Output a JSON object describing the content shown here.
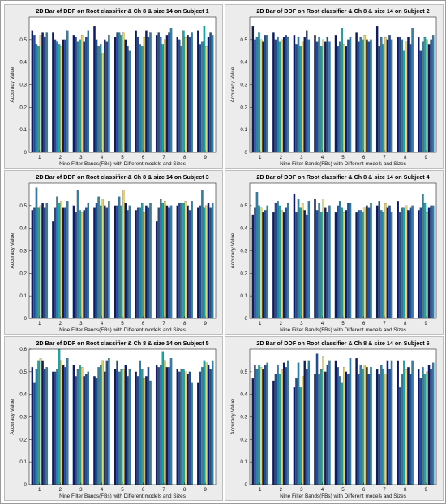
{
  "figure": {
    "palette": [
      "#0b1a6e",
      "#1f4e96",
      "#2f7fa8",
      "#1aa7a2",
      "#e9d46c"
    ]
  },
  "chart_data": [
    {
      "type": "bar",
      "title": "2D Bar of DDF on Root classifier & Ch 8 & size 14 on Subject 1",
      "xlabel": "Nine Filter Bands(FBs) with Different models and Sizes",
      "ylabel": "Accuracy Value",
      "categories": [
        "1",
        "2",
        "3",
        "4",
        "5",
        "6",
        "7",
        "8",
        "9"
      ],
      "ylim": [
        0,
        0.6
      ],
      "yticks": [
        "0",
        "0.1",
        "0.2",
        "0.3",
        "0.4",
        "0.5"
      ],
      "grid": false,
      "series_values": [
        [
          0.54,
          0.52,
          0.48,
          0.47,
          0.52,
          0.53,
          0.51,
          0.53
        ],
        [
          0.53,
          0.5,
          0.49,
          0.48,
          0.47,
          0.5,
          0.5,
          0.54
        ],
        [
          0.52,
          0.51,
          0.49,
          0.5,
          0.52,
          0.49,
          0.51,
          0.54
        ],
        [
          0.56,
          0.5,
          0.47,
          0.48,
          0.44,
          0.5,
          0.49,
          0.52
        ],
        [
          0.51,
          0.53,
          0.53,
          0.52,
          0.53,
          0.5,
          0.47,
          0.45
        ],
        [
          0.54,
          0.51,
          0.48,
          0.47,
          0.51,
          0.54,
          0.51,
          0.53
        ],
        [
          0.52,
          0.53,
          0.51,
          0.48,
          0.5,
          0.52,
          0.53,
          0.55
        ],
        [
          0.51,
          0.5,
          0.47,
          0.54,
          0.51,
          0.52,
          0.51,
          0.53
        ],
        [
          0.54,
          0.48,
          0.49,
          0.56,
          0.47,
          0.51,
          0.53,
          0.52
        ]
      ]
    },
    {
      "type": "bar",
      "title": "2D Bar of DDF on Root classifier & Ch 8 & size 14 on Subject 2",
      "xlabel": "Nine Filter Bands(FBs) with Different models and Sizes",
      "ylabel": "Accuracy Value",
      "categories": [
        "1",
        "2",
        "3",
        "4",
        "5",
        "6",
        "7",
        "8",
        "9"
      ],
      "ylim": [
        0,
        0.6
      ],
      "yticks": [
        "0",
        "0.1",
        "0.2",
        "0.3",
        "0.4",
        "0.5"
      ],
      "grid": false,
      "series_values": [
        [
          0.56,
          0.5,
          0.51,
          0.53,
          0.5,
          0.49,
          0.52,
          0.52
        ],
        [
          0.53,
          0.5,
          0.51,
          0.49,
          0.5,
          0.51,
          0.52,
          0.51
        ],
        [
          0.52,
          0.48,
          0.51,
          0.47,
          0.49,
          0.51,
          0.54,
          0.5
        ],
        [
          0.52,
          0.49,
          0.51,
          0.47,
          0.5,
          0.49,
          0.51,
          0.49
        ],
        [
          0.52,
          0.47,
          0.49,
          0.55,
          0.48,
          0.47,
          0.5,
          0.51
        ],
        [
          0.53,
          0.49,
          0.51,
          0.5,
          0.52,
          0.5,
          0.49,
          0.5
        ],
        [
          0.56,
          0.47,
          0.51,
          0.48,
          0.51,
          0.5,
          0.52,
          0.5
        ],
        [
          0.51,
          0.51,
          0.5,
          0.45,
          0.49,
          0.51,
          0.48,
          0.55
        ],
        [
          0.51,
          0.45,
          0.49,
          0.51,
          0.5,
          0.48,
          0.5,
          0.52
        ]
      ]
    },
    {
      "type": "bar",
      "title": "2D Bar of DDF on Root classifier & Ch 8 & size 14 on Subject 3",
      "xlabel": "Nine Filter Bands(FBs) with Different models and Sizes",
      "ylabel": "Accuracy Value",
      "categories": [
        "1",
        "2",
        "3",
        "4",
        "5",
        "6",
        "7",
        "8",
        "9"
      ],
      "ylim": [
        0,
        0.6
      ],
      "yticks": [
        "0",
        "0.1",
        "0.2",
        "0.3",
        "0.4",
        "0.5"
      ],
      "grid": false,
      "series_values": [
        [
          0.48,
          0.49,
          0.58,
          0.49,
          0.5,
          0.51,
          0.49,
          0.51
        ],
        [
          0.43,
          0.49,
          0.54,
          0.51,
          0.52,
          0.49,
          0.49,
          0.52
        ],
        [
          0.5,
          0.47,
          0.57,
          0.48,
          0.47,
          0.48,
          0.49,
          0.51
        ],
        [
          0.49,
          0.51,
          0.54,
          0.5,
          0.53,
          0.5,
          0.49,
          0.52
        ],
        [
          0.5,
          0.5,
          0.54,
          0.5,
          0.57,
          0.51,
          0.48,
          0.5
        ],
        [
          0.48,
          0.49,
          0.49,
          0.51,
          0.47,
          0.5,
          0.49,
          0.51
        ],
        [
          0.43,
          0.49,
          0.53,
          0.51,
          0.52,
          0.5,
          0.49,
          0.5
        ],
        [
          0.5,
          0.51,
          0.51,
          0.51,
          0.52,
          0.5,
          0.48,
          0.52
        ],
        [
          0.49,
          0.5,
          0.57,
          0.49,
          0.5,
          0.51,
          0.49,
          0.51
        ]
      ]
    },
    {
      "type": "bar",
      "title": "2D Bar of DDF on Root classifier & Ch 8 & size 14 on Subject 4",
      "xlabel": "Nine Filter Bands(FBs) with Different models and Sizes",
      "ylabel": "Accuracy Value",
      "categories": [
        "1",
        "2",
        "3",
        "4",
        "5",
        "6",
        "7",
        "8",
        "9"
      ],
      "ylim": [
        0,
        0.6
      ],
      "yticks": [
        "0",
        "0.1",
        "0.2",
        "0.3",
        "0.4",
        "0.5"
      ],
      "grid": false,
      "series_values": [
        [
          0.46,
          0.49,
          0.56,
          0.5,
          0.49,
          0.47,
          0.48,
          0.5
        ],
        [
          0.47,
          0.51,
          0.52,
          0.5,
          0.48,
          0.47,
          0.49,
          0.51
        ],
        [
          0.55,
          0.47,
          0.53,
          0.49,
          0.51,
          0.48,
          0.46,
          0.52
        ],
        [
          0.53,
          0.48,
          0.51,
          0.47,
          0.53,
          0.49,
          0.47,
          0.5
        ],
        [
          0.47,
          0.5,
          0.52,
          0.49,
          0.47,
          0.48,
          0.51,
          0.51
        ],
        [
          0.47,
          0.48,
          0.48,
          0.47,
          0.49,
          0.5,
          0.49,
          0.51
        ],
        [
          0.5,
          0.52,
          0.48,
          0.47,
          0.51,
          0.49,
          0.5,
          0.47
        ],
        [
          0.52,
          0.47,
          0.49,
          0.49,
          0.5,
          0.48,
          0.49,
          0.5
        ],
        [
          0.48,
          0.49,
          0.55,
          0.51,
          0.47,
          0.49,
          0.5,
          0.5
        ]
      ]
    },
    {
      "type": "bar",
      "title": "2D Bar of DDF on Root classifier & Ch 8 & size 14 on Subject 5",
      "xlabel": "Nine Filter Bands(FBs) with Different models and Sizes",
      "ylabel": "Accuracy Value",
      "categories": [
        "1",
        "2",
        "3",
        "4",
        "5",
        "6",
        "7",
        "8",
        "9"
      ],
      "ylim": [
        0,
        0.6
      ],
      "yticks": [
        "0",
        "0.1",
        "0.2",
        "0.3",
        "0.4",
        "0.5",
        "0.6"
      ],
      "grid": false,
      "series_values": [
        [
          0.52,
          0.45,
          0.51,
          0.55,
          0.56,
          0.55,
          0.51,
          0.52
        ],
        [
          0.5,
          0.5,
          0.51,
          0.6,
          0.55,
          0.53,
          0.52,
          0.56
        ],
        [
          0.53,
          0.48,
          0.51,
          0.53,
          0.52,
          0.48,
          0.49,
          0.5
        ],
        [
          0.48,
          0.47,
          0.52,
          0.53,
          0.55,
          0.5,
          0.55,
          0.56
        ],
        [
          0.51,
          0.55,
          0.5,
          0.51,
          0.51,
          0.53,
          0.48,
          0.51
        ],
        [
          0.5,
          0.48,
          0.55,
          0.51,
          0.47,
          0.48,
          0.52,
          0.46
        ],
        [
          0.53,
          0.52,
          0.53,
          0.59,
          0.55,
          0.52,
          0.52,
          0.56
        ],
        [
          0.51,
          0.5,
          0.51,
          0.51,
          0.5,
          0.49,
          0.5,
          0.45
        ],
        [
          0.45,
          0.5,
          0.52,
          0.55,
          0.54,
          0.53,
          0.51,
          0.55
        ]
      ]
    },
    {
      "type": "bar",
      "title": "2D Bar of DDF on Root classifier & Ch 8 & size 14 on Subject 6",
      "xlabel": "Nine Filter Bands(FBs) with Different models and Sizes",
      "ylabel": "Accuracy Value",
      "categories": [
        "1",
        "2",
        "3",
        "4",
        "5",
        "6",
        "7",
        "8",
        "9"
      ],
      "ylim": [
        0,
        0.6
      ],
      "yticks": [
        "0",
        "0.1",
        "0.2",
        "0.3",
        "0.4",
        "0.5"
      ],
      "grid": false,
      "series_values": [
        [
          0.47,
          0.53,
          0.51,
          0.53,
          0.52,
          0.51,
          0.53,
          0.54
        ],
        [
          0.46,
          0.49,
          0.53,
          0.49,
          0.51,
          0.54,
          0.52,
          0.55
        ],
        [
          0.43,
          0.47,
          0.54,
          0.43,
          0.48,
          0.55,
          0.51,
          0.55
        ],
        [
          0.49,
          0.58,
          0.49,
          0.51,
          0.57,
          0.5,
          0.53,
          0.55
        ],
        [
          0.55,
          0.52,
          0.48,
          0.45,
          0.52,
          0.5,
          0.49,
          0.56
        ],
        [
          0.56,
          0.49,
          0.53,
          0.51,
          0.53,
          0.52,
          0.49,
          0.52
        ],
        [
          0.51,
          0.49,
          0.53,
          0.51,
          0.49,
          0.55,
          0.51,
          0.55
        ],
        [
          0.55,
          0.43,
          0.49,
          0.55,
          0.51,
          0.52,
          0.49,
          0.55
        ],
        [
          0.51,
          0.47,
          0.52,
          0.49,
          0.5,
          0.53,
          0.51,
          0.54
        ]
      ]
    }
  ]
}
